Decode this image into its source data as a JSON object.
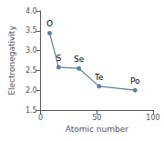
{
  "chart_data": {
    "type": "line",
    "x": [
      8,
      16,
      34,
      52,
      84
    ],
    "values": [
      3.44,
      2.58,
      2.55,
      2.1,
      2.0
    ],
    "color": "#5B7FA6",
    "marker": "circle",
    "xlabel": "Atomic number",
    "ylabel": "Electronegativity",
    "xlim": [
      0,
      100
    ],
    "xticks": [
      0,
      50,
      100
    ],
    "ylim": [
      1.5,
      4.0
    ],
    "yticks": [
      1.5,
      {
        "value": 2,
        "label": "2.0"
      },
      2.5,
      {
        "value": 3,
        "label": "3.0"
      },
      3.5,
      {
        "value": 4,
        "label": "4.0"
      }
    ],
    "annotations": [
      "O",
      "S",
      "Se",
      "Te",
      "Po"
    ],
    "grid": false
  }
}
